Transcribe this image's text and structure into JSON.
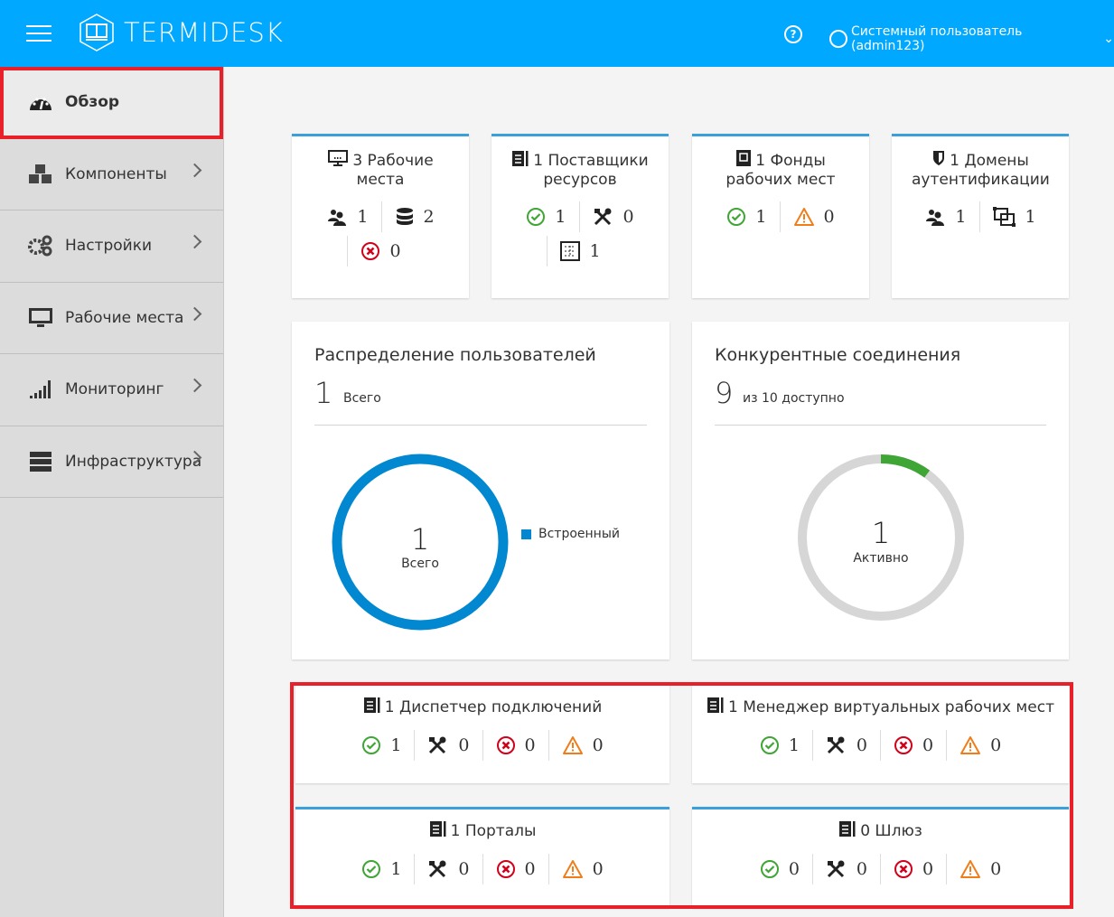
{
  "header": {
    "brand": "TERMIDESK",
    "user": "Системный пользователь (admin123)",
    "brand_color": "#00a8ff"
  },
  "sidebar": {
    "items": [
      {
        "label": "Обзор",
        "icon": "dashboard-icon",
        "active": true
      },
      {
        "label": "Компоненты",
        "icon": "cubes-icon"
      },
      {
        "label": "Настройки",
        "icon": "gears-icon"
      },
      {
        "label": "Рабочие места",
        "icon": "desktop-icon"
      },
      {
        "label": "Мониторинг",
        "icon": "signal-icon"
      },
      {
        "label": "Инфраструктура",
        "icon": "server-icon"
      }
    ]
  },
  "summary_cards": [
    {
      "title": "3 Рабочие места",
      "icon": "workplace-icon",
      "rows": [
        [
          {
            "icon": "users-icon",
            "value": "1"
          },
          {
            "icon": "database-icon",
            "value": "2"
          }
        ],
        [
          {
            "icon": "error-icon",
            "value": "0"
          }
        ]
      ]
    },
    {
      "title": "1 Поставщики ресурсов",
      "icon": "server-doc-icon",
      "rows": [
        [
          {
            "icon": "ok-icon",
            "value": "1"
          },
          {
            "icon": "tools-icon",
            "value": "0"
          }
        ],
        [
          {
            "icon": "grid-icon",
            "value": "1"
          }
        ]
      ]
    },
    {
      "title": "1 Фонды рабочих мест",
      "icon": "chip-icon",
      "rows": [
        [
          {
            "icon": "ok-icon",
            "value": "1"
          },
          {
            "icon": "warning-icon",
            "value": "0"
          }
        ]
      ]
    },
    {
      "title": "1 Домены аутентификации",
      "icon": "shield-icon",
      "rows": [
        [
          {
            "icon": "users-icon",
            "value": "1"
          },
          {
            "icon": "group-icon",
            "value": "1"
          }
        ]
      ]
    }
  ],
  "users_dist": {
    "title": "Распределение пользователей",
    "total": "1",
    "total_label": "Всего",
    "center_value": "1",
    "center_label": "Всего",
    "legend": "Встроенный",
    "color": "#0288d1"
  },
  "connections": {
    "title": "Конкурентные соединения",
    "available": "9",
    "available_label": "из 10 доступно",
    "center_value": "1",
    "center_label": "Активно",
    "active": 1,
    "max": 10,
    "color": "#3fa535"
  },
  "service_cards": [
    {
      "title": "1 Диспетчер подключений",
      "ok": "1",
      "maint": "0",
      "err": "0",
      "warn": "0"
    },
    {
      "title": "1 Менеджер виртуальных рабочих мест",
      "ok": "1",
      "maint": "0",
      "err": "0",
      "warn": "0"
    },
    {
      "title": "1 Порталы",
      "ok": "1",
      "maint": "0",
      "err": "0",
      "warn": "0"
    },
    {
      "title": "0 Шлюз",
      "ok": "0",
      "maint": "0",
      "err": "0",
      "warn": "0"
    }
  ]
}
